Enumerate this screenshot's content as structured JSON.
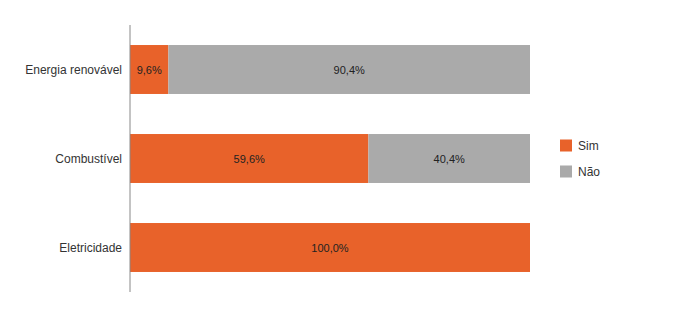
{
  "chart_data": {
    "type": "bar",
    "orientation": "horizontal",
    "stacked": true,
    "categories": [
      "Eletricidade",
      "Combustível",
      "Energia renovável"
    ],
    "series": [
      {
        "name": "Sim",
        "color": "#E8622A",
        "values": [
          100.0,
          59.6,
          9.6
        ],
        "value_labels": [
          "100,0%",
          "59,6%",
          "9,6%"
        ]
      },
      {
        "name": "Não",
        "color": "#AAAAAA",
        "values": [
          0.0,
          40.4,
          90.4
        ],
        "value_labels": [
          null,
          "40,4%",
          "90,4%"
        ]
      }
    ],
    "xlim": [
      0,
      100
    ],
    "data_labels": true,
    "tick_labels": "y",
    "grid": false,
    "legend": "right"
  }
}
